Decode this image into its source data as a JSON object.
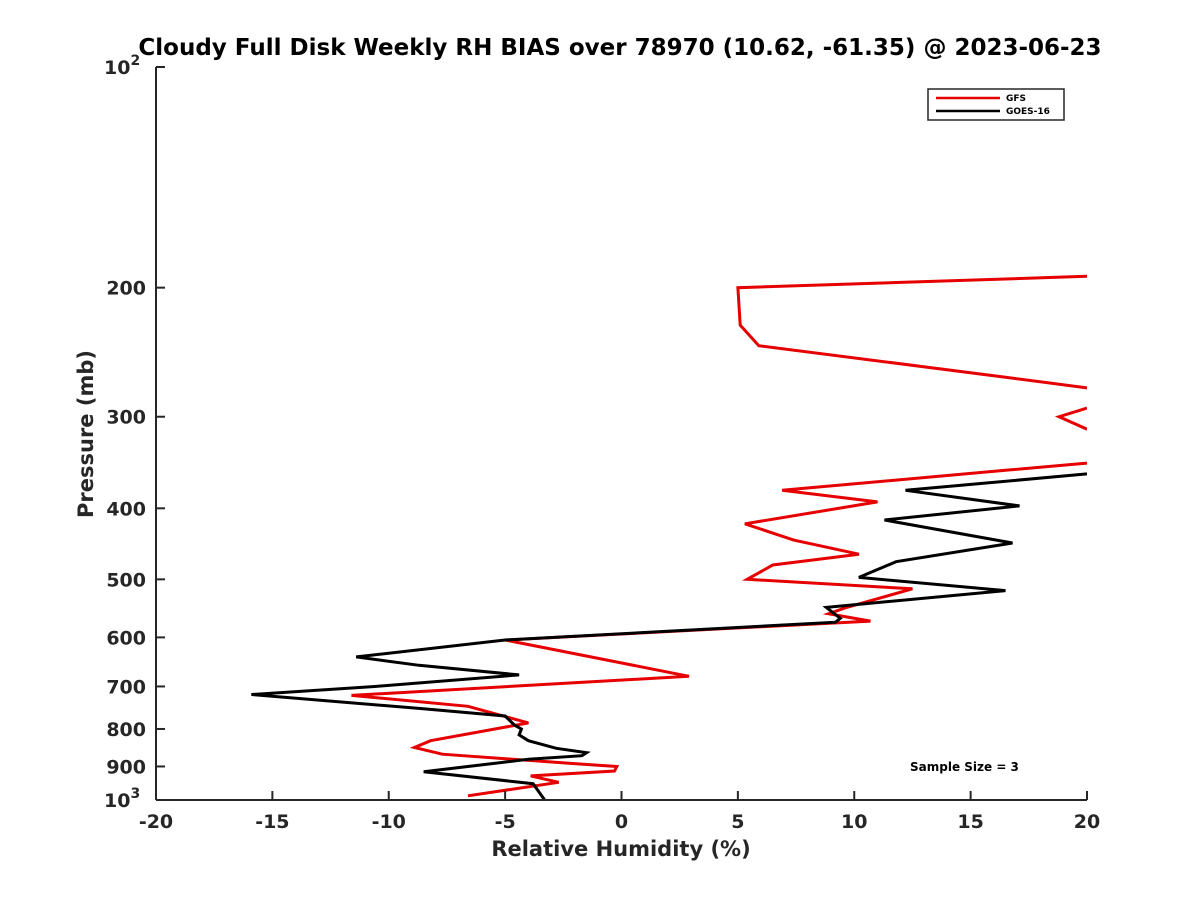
{
  "chart_data": {
    "type": "line",
    "title": "Cloudy Full Disk Weekly RH BIAS over 78970 (10.62, -61.35) @ 2023-06-23",
    "xlabel": "Relative Humidity (%)",
    "ylabel": "Pressure (mb)",
    "xlim": [
      -20,
      20
    ],
    "ylim": [
      100,
      1000
    ],
    "y_scale": "log",
    "y_reversed": true,
    "grid": false,
    "legend_placement": "top-right",
    "x_ticks": [
      "-20",
      "-15",
      "-10",
      "-5",
      "0",
      "5",
      "10",
      "15",
      "20"
    ],
    "y_ticks": [
      {
        "value": 100,
        "label": "10",
        "sup": "2"
      },
      {
        "value": 200,
        "label": "200",
        "sup": ""
      },
      {
        "value": 300,
        "label": "300",
        "sup": ""
      },
      {
        "value": 400,
        "label": "400",
        "sup": ""
      },
      {
        "value": 500,
        "label": "500",
        "sup": ""
      },
      {
        "value": 600,
        "label": "600",
        "sup": ""
      },
      {
        "value": 700,
        "label": "700",
        "sup": ""
      },
      {
        "value": 800,
        "label": "800",
        "sup": ""
      },
      {
        "value": 900,
        "label": "900",
        "sup": ""
      },
      {
        "value": 1000,
        "label": "10",
        "sup": "3"
      }
    ],
    "series": [
      {
        "name": "GFS",
        "color": "#e60000",
        "points": [
          [
            20.0,
            193
          ],
          [
            5.0,
            200
          ],
          [
            5.1,
            225
          ],
          [
            5.9,
            240
          ],
          [
            16.5,
            265
          ],
          [
            20.0,
            274
          ],
          null,
          [
            20.0,
            292
          ],
          [
            18.8,
            300
          ],
          [
            20.0,
            312
          ],
          null,
          [
            20.0,
            347
          ],
          [
            16.5,
            355
          ],
          [
            6.9,
            378
          ],
          [
            11.0,
            392
          ],
          [
            5.3,
            420
          ],
          [
            7.4,
            442
          ],
          [
            10.2,
            462
          ],
          [
            6.5,
            478
          ],
          [
            5.4,
            500
          ],
          [
            12.5,
            515
          ],
          [
            9.6,
            547
          ],
          [
            8.9,
            557
          ],
          [
            10.7,
            570
          ],
          [
            -5.0,
            605
          ],
          [
            2.9,
            678
          ],
          [
            -11.6,
            720
          ],
          [
            -6.6,
            745
          ],
          [
            -4.0,
            785
          ],
          [
            -8.2,
            830
          ],
          [
            -8.9,
            848
          ],
          [
            -7.7,
            866
          ],
          [
            -1.8,
            893
          ],
          [
            -0.2,
            900
          ],
          [
            -0.3,
            913
          ],
          [
            -3.9,
            927
          ],
          [
            -2.7,
            946
          ],
          [
            -6.6,
            987
          ]
        ]
      },
      {
        "name": "GOES-16",
        "color": "#000000",
        "points": [
          [
            20.0,
            359
          ],
          [
            12.2,
            378
          ],
          [
            17.1,
            397
          ],
          [
            11.3,
            415
          ],
          [
            16.8,
            446
          ],
          [
            11.8,
            473
          ],
          [
            10.2,
            497
          ],
          [
            16.5,
            518
          ],
          [
            8.8,
            546
          ],
          [
            9.4,
            565
          ],
          [
            9.2,
            572
          ],
          [
            -5.0,
            605
          ],
          [
            -11.4,
            638
          ],
          [
            -8.7,
            655
          ],
          [
            -4.4,
            675
          ],
          [
            -10.6,
            700
          ],
          [
            -15.9,
            718
          ],
          [
            -8.7,
            750
          ],
          [
            -5.0,
            768
          ],
          [
            -4.6,
            790
          ],
          [
            -4.3,
            800
          ],
          [
            -4.4,
            815
          ],
          [
            -4.0,
            830
          ],
          [
            -2.8,
            850
          ],
          [
            -1.5,
            862
          ],
          [
            -1.7,
            870
          ],
          [
            -4.0,
            880
          ],
          [
            -8.5,
            915
          ],
          [
            -3.8,
            950
          ],
          [
            -3.3,
            1000
          ]
        ]
      }
    ],
    "annotation": "Sample Size = 3"
  }
}
